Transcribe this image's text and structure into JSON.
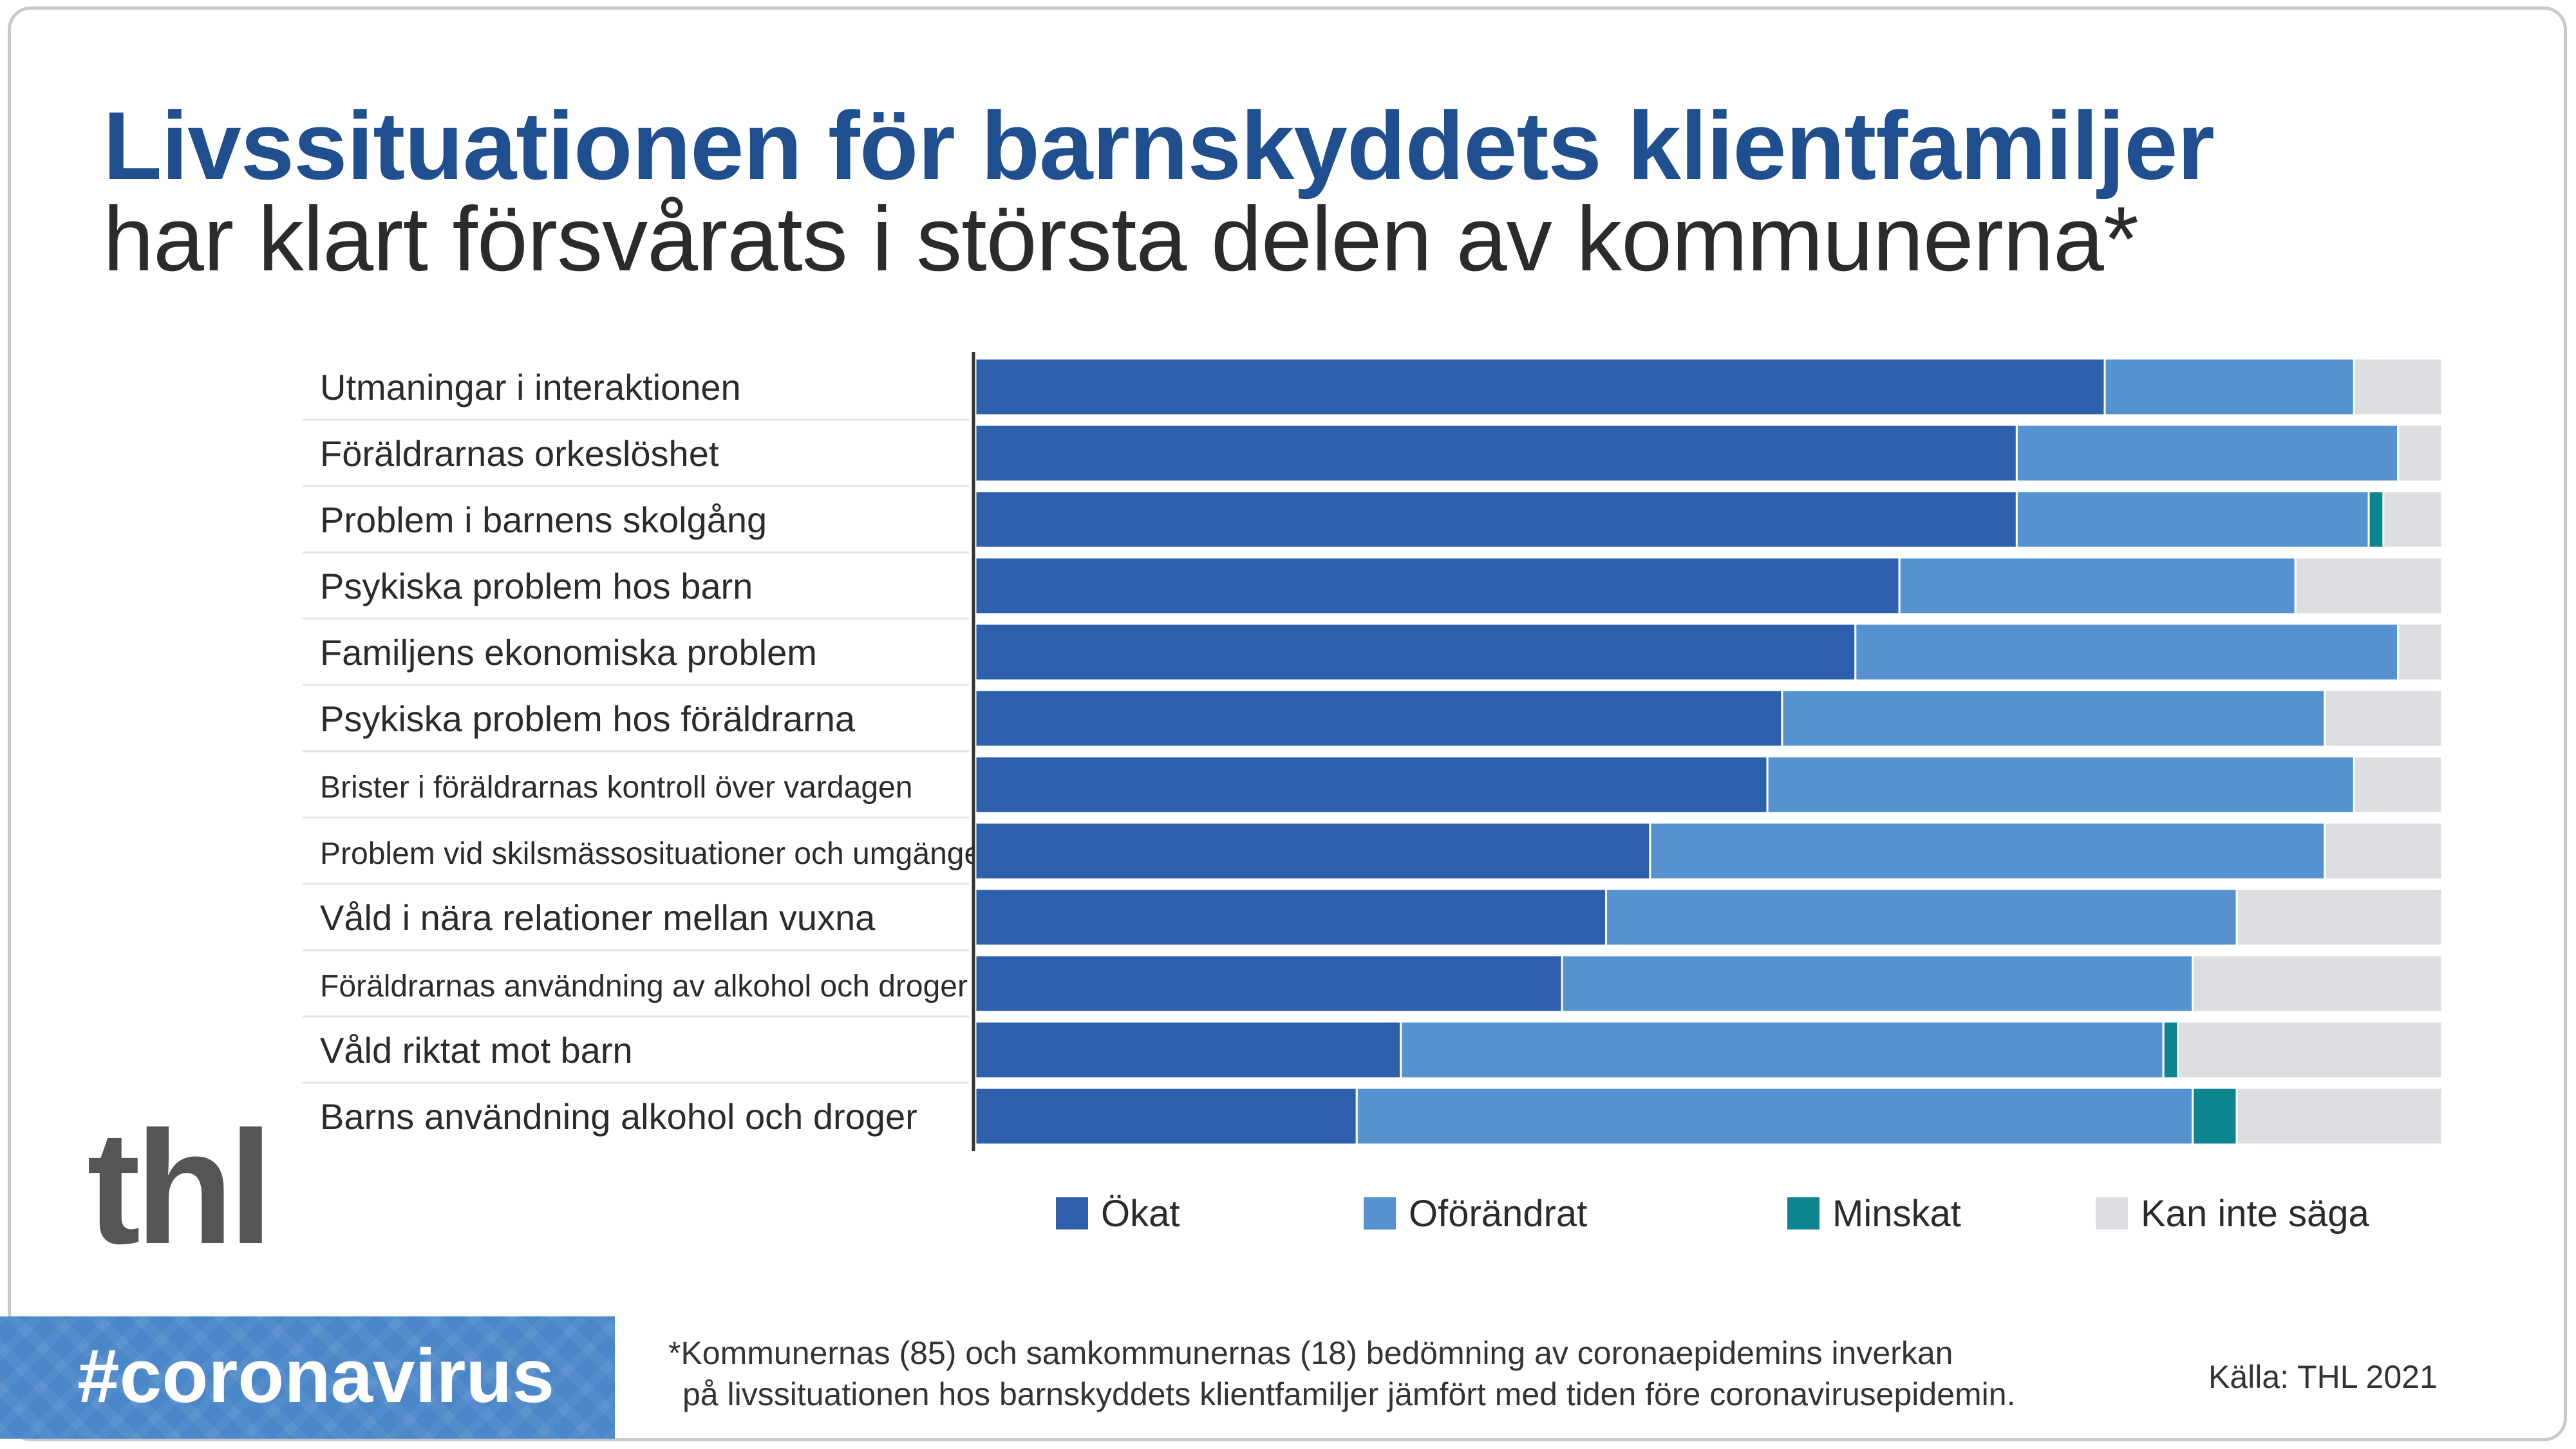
{
  "title_line1": "Livssituationen för barnskyddets klientfamiljer",
  "title_line2": "har klart försvårats i största delen av kommunerna*",
  "logo_text": "thl",
  "hashtag": "#coronavirus",
  "footnote_line1": "*Kommunernas (85) och samkommunernas (18) bedömning av coronaepidemins inverkan",
  "footnote_line2": "på livssituationen hos barnskyddets klientfamiljer jämfört med tiden före coronavirusepidemin.",
  "source": "Källa: THL 2021",
  "colors": {
    "okat": "#2e5fad",
    "oforandrat": "#5592cf",
    "minskat": "#0d858e",
    "kan_inte_saga": "#dcdee1"
  },
  "chart_data": {
    "type": "bar",
    "orientation": "horizontal",
    "stacked": true,
    "xlim": [
      0,
      100
    ],
    "categories": [
      "Utmaningar i interaktionen",
      "Föräldrarnas orkeslöshet",
      "Problem i barnens skolgång",
      "Psykiska problem hos barn",
      "Familjens ekonomiska problem",
      "Psykiska problem hos föräldrarna",
      "Brister i föräldrarnas kontroll över vardagen",
      "Problem vid skilsmässosituationer och umgänge",
      "Våld i nära relationer mellan vuxna",
      "Föräldrarnas användning av alkohol och droger",
      "Våld riktat mot barn",
      "Barns användning alkohol och droger"
    ],
    "series": [
      {
        "name": "Ökat",
        "values": [
          77,
          71,
          71,
          63,
          60,
          55,
          54,
          46,
          43,
          40,
          29,
          26
        ]
      },
      {
        "name": "Oförändrat",
        "values": [
          17,
          26,
          24,
          27,
          37,
          37,
          40,
          46,
          43,
          43,
          52,
          57
        ]
      },
      {
        "name": "Minskat",
        "values": [
          0,
          0,
          1,
          0,
          0,
          0,
          0,
          0,
          0,
          0,
          1,
          3
        ]
      },
      {
        "name": "Kan inte säga",
        "values": [
          6,
          3,
          4,
          10,
          3,
          8,
          6,
          8,
          14,
          17,
          18,
          14
        ]
      }
    ],
    "legend_position": "bottom"
  }
}
